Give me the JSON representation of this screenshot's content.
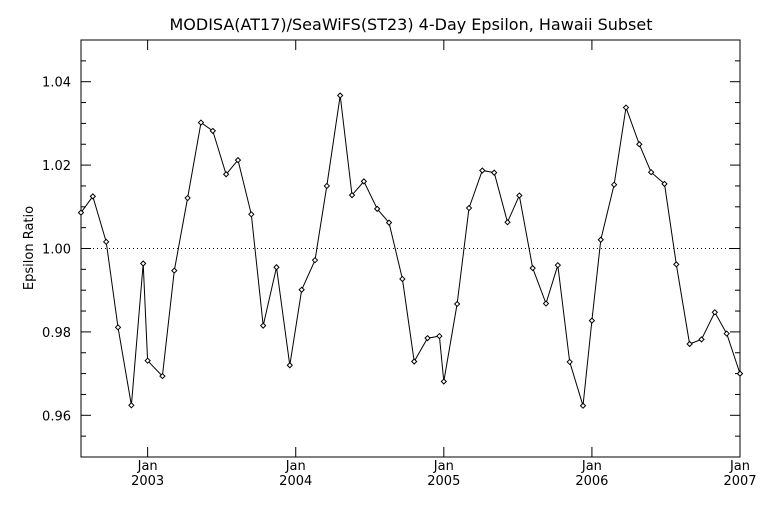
{
  "chart_data": {
    "type": "line",
    "title": "MODISA(AT17)/SeaWiFS(ST23) 4-Day Epsilon, Hawaii Subset",
    "ylabel": "Epsilon Ratio",
    "xlabel": "",
    "xlim": [
      2002.55,
      2007.0
    ],
    "ylim": [
      0.95,
      1.05
    ],
    "yticks": [
      0.96,
      0.98,
      1.0,
      1.02,
      1.04
    ],
    "ytick_labels": [
      "0.96",
      "0.98",
      "1.00",
      "1.02",
      "1.04"
    ],
    "xticks": [
      {
        "month": "Jan",
        "year": "2003",
        "x": 2003.0
      },
      {
        "month": "Jan",
        "year": "2004",
        "x": 2004.0
      },
      {
        "month": "Jan",
        "year": "2005",
        "x": 2005.0
      },
      {
        "month": "Jan",
        "year": "2006",
        "x": 2006.0
      },
      {
        "month": "Jan",
        "year": "2007",
        "x": 2007.0
      }
    ],
    "reference_line": 1.0,
    "grid": false,
    "series": [
      {
        "x": [
          2002.55,
          2002.63,
          2002.72,
          2002.8,
          2002.89,
          2002.97,
          2003.0,
          2003.1,
          2003.18,
          2003.27,
          2003.36,
          2003.44,
          2003.53,
          2003.61,
          2003.7,
          2003.78,
          2003.87,
          2003.96,
          2004.04,
          2004.13,
          2004.21,
          2004.3,
          2004.38,
          2004.46,
          2004.55,
          2004.63,
          2004.72,
          2004.8,
          2004.89,
          2004.97,
          2005.0,
          2005.09,
          2005.17,
          2005.26,
          2005.34,
          2005.43,
          2005.51,
          2005.6,
          2005.69,
          2005.77,
          2005.85,
          2005.94,
          2006.0,
          2006.06,
          2006.15,
          2006.23,
          2006.32,
          2006.4,
          2006.49,
          2006.57,
          2006.66,
          2006.74,
          2006.83,
          2006.91,
          2007.0,
          2007.0
        ],
        "y": [
          1.0086,
          1.0125,
          1.0016,
          0.9811,
          0.9624,
          0.9964,
          0.9731,
          0.9694,
          0.9947,
          1.0121,
          1.0302,
          1.0282,
          1.0178,
          1.0212,
          1.0082,
          0.9815,
          0.9955,
          0.972,
          0.9901,
          0.9972,
          1.015,
          1.0367,
          1.0128,
          1.0161,
          1.0095,
          1.0062,
          0.9927,
          0.9729,
          0.9785,
          0.979,
          0.9681,
          0.9867,
          1.0097,
          1.0187,
          1.0182,
          1.0063,
          1.0127,
          0.9953,
          0.9868,
          0.996,
          0.9728,
          0.9623,
          0.9827,
          1.0021,
          1.0153,
          1.0338,
          1.025,
          1.0183,
          1.0155,
          0.9962,
          0.9771,
          0.9782,
          0.9847,
          0.9796,
          0.97,
          0.97
        ]
      }
    ]
  }
}
